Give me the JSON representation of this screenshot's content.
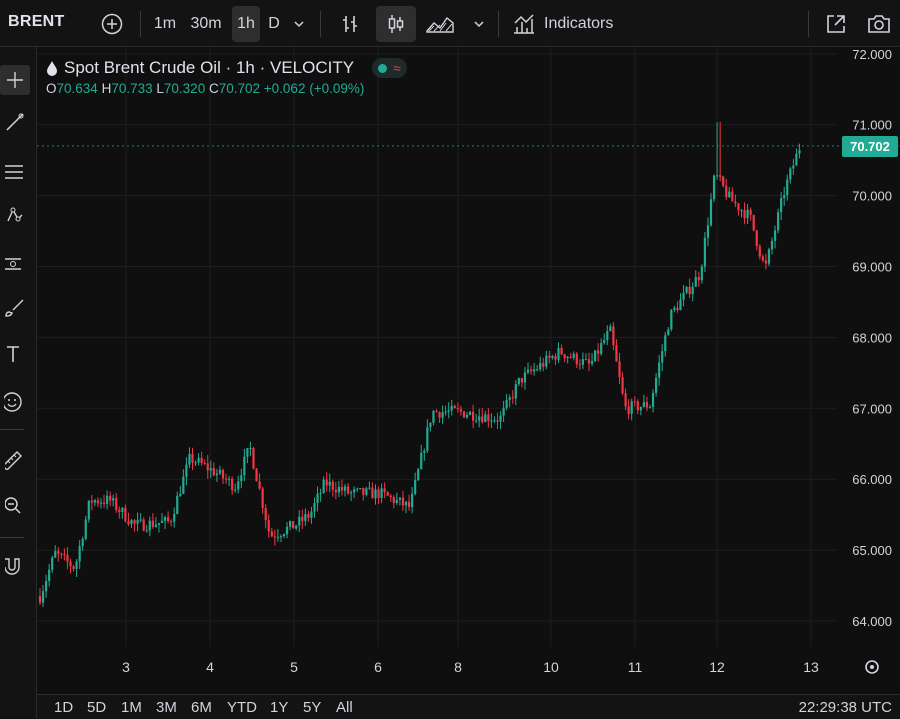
{
  "toolbar": {
    "symbol": "BRENT",
    "intervals": [
      "1m",
      "30m",
      "1h",
      "D"
    ],
    "active_interval": "1h",
    "indicators_label": "Indicators"
  },
  "legend": {
    "title": "Spot Brent Crude Oil · 1h · VELOCITY",
    "o_key": "O",
    "o_val": "70.634",
    "h_key": "H",
    "h_val": "70.733",
    "l_key": "L",
    "l_val": "70.320",
    "c_key": "C",
    "c_val": "70.702",
    "change": "+0.062 (+0.09%)"
  },
  "colors": {
    "up": "#22ab94",
    "down": "#f23645",
    "background": "#0f0f0f",
    "grid": "#1e1e1e"
  },
  "range_buttons": [
    "1D",
    "5D",
    "1M",
    "3M",
    "6M",
    "YTD",
    "1Y",
    "5Y",
    "All"
  ],
  "clock": "22:29:38 UTC",
  "chart_data": {
    "type": "candlestick",
    "title": "Spot Brent Crude Oil · 1h · VELOCITY",
    "ylim": [
      63.8,
      72.1
    ],
    "y_ticks": [
      "64.000",
      "65.000",
      "66.000",
      "67.000",
      "68.000",
      "69.000",
      "70.000",
      "71.000",
      "72.000"
    ],
    "x_ticks": [
      "3",
      "4",
      "5",
      "6",
      "8",
      "10",
      "11",
      "12",
      "13"
    ],
    "last_price": "70.702",
    "last_value": 70.702,
    "grid": true
  }
}
